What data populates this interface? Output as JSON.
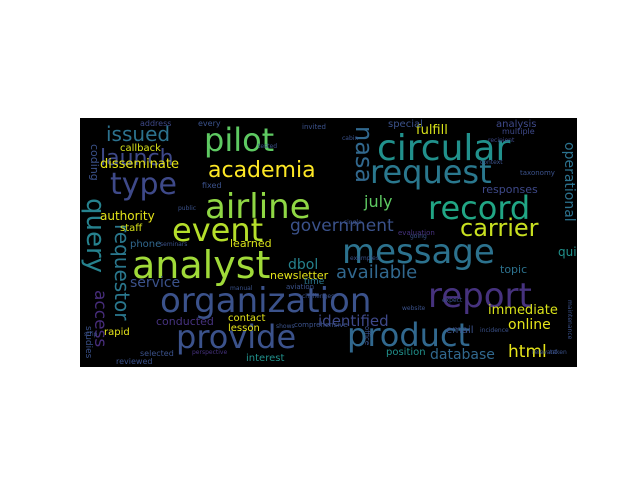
{
  "figure": {
    "words": [
      {
        "text": "organization",
        "color": "#3b528b"
      },
      {
        "text": "analyst",
        "color": "#a0da39"
      },
      {
        "text": "airline",
        "color": "#8fd744"
      },
      {
        "text": "message",
        "color": "#2c728e"
      },
      {
        "text": "provide",
        "color": "#3b528b"
      },
      {
        "text": "product",
        "color": "#31688e"
      },
      {
        "text": "report",
        "color": "#46327e"
      },
      {
        "text": "circular",
        "color": "#21918c"
      },
      {
        "text": "request",
        "color": "#2a788e"
      },
      {
        "text": "record",
        "color": "#21a685"
      },
      {
        "text": "event",
        "color": "#b5de2b"
      },
      {
        "text": "pilot",
        "color": "#5ec962"
      },
      {
        "text": "type",
        "color": "#3e4989"
      },
      {
        "text": "academia",
        "color": "#fde725"
      },
      {
        "text": "carrier",
        "color": "#c8e020"
      },
      {
        "text": "launch",
        "color": "#3e4989"
      },
      {
        "text": "issued",
        "color": "#2c728e"
      },
      {
        "text": "nasa",
        "color": "#31688e"
      },
      {
        "text": "query",
        "color": "#26828e"
      },
      {
        "text": "requestor",
        "color": "#2a788e"
      },
      {
        "text": "government",
        "color": "#3b528b"
      },
      {
        "text": "available",
        "color": "#31688e"
      },
      {
        "text": "identified",
        "color": "#3e4989"
      },
      {
        "text": "service",
        "color": "#3b528b"
      },
      {
        "text": "access",
        "color": "#472d7b"
      },
      {
        "text": "html",
        "color": "#e5e419"
      },
      {
        "text": "database",
        "color": "#31688e"
      },
      {
        "text": "online",
        "color": "#e5e419"
      },
      {
        "text": "immediate",
        "color": "#d8e219"
      },
      {
        "text": "july",
        "color": "#5ec962"
      },
      {
        "text": "fulfill",
        "color": "#d8e219"
      },
      {
        "text": "disseminate",
        "color": "#e5e419"
      },
      {
        "text": "authority",
        "color": "#e5e419"
      },
      {
        "text": "dbol",
        "color": "#26828e"
      },
      {
        "text": "newsletter",
        "color": "#e5e419"
      },
      {
        "text": "learned",
        "color": "#d8e219"
      },
      {
        "text": "quick",
        "color": "#21918c"
      },
      {
        "text": "topic",
        "color": "#2c728e"
      },
      {
        "text": "callback",
        "color": "#d8e219"
      },
      {
        "text": "rapid",
        "color": "#e5e419"
      },
      {
        "text": "position",
        "color": "#21918c"
      },
      {
        "text": "interest",
        "color": "#21918c"
      },
      {
        "text": "lesson",
        "color": "#e5e419"
      },
      {
        "text": "contact",
        "color": "#e5e419"
      },
      {
        "text": "conducted",
        "color": "#46327e"
      },
      {
        "text": "staff",
        "color": "#d8e219"
      },
      {
        "text": "phone",
        "color": "#31688e"
      },
      {
        "text": "email",
        "color": "#3b528b"
      },
      {
        "text": "responses",
        "color": "#3e4989"
      },
      {
        "text": "special",
        "color": "#3b528b"
      },
      {
        "text": "operational",
        "color": "#2c728e"
      },
      {
        "text": "analysis",
        "color": "#3e4989"
      },
      {
        "text": "coding",
        "color": "#3b528b"
      },
      {
        "text": "time",
        "color": "#2a788e"
      },
      {
        "text": "reviewed",
        "color": "#3b528b"
      },
      {
        "text": "address",
        "color": "#3e4989"
      },
      {
        "text": "every",
        "color": "#3b528b"
      },
      {
        "text": "multiple",
        "color": "#3e4989"
      },
      {
        "text": "selected",
        "color": "#3b528b"
      },
      {
        "text": "fixed",
        "color": "#3b528b"
      },
      {
        "text": "studies",
        "color": "#3b528b"
      },
      {
        "text": "taxonomy",
        "color": "#3b528b"
      },
      {
        "text": "evaluation",
        "color": "#46327e"
      },
      {
        "text": "comprehensive",
        "color": "#3b528b"
      },
      {
        "text": "examples",
        "color": "#3b528b"
      },
      {
        "text": "aviation",
        "color": "#3b528b"
      },
      {
        "text": "manual",
        "color": "#3b528b"
      },
      {
        "text": "challenges",
        "color": "#3b528b"
      },
      {
        "text": "recipient",
        "color": "#3e4989"
      },
      {
        "text": "invited",
        "color": "#3b528b"
      },
      {
        "text": "tested",
        "color": "#3b528b"
      },
      {
        "text": "public",
        "color": "#3b528b"
      },
      {
        "text": "context",
        "color": "#3b528b"
      },
      {
        "text": "website",
        "color": "#3b528b"
      },
      {
        "text": "incidence",
        "color": "#3b528b"
      },
      {
        "text": "perspective",
        "color": "#46327e"
      },
      {
        "text": "maintenance",
        "color": "#3b528b"
      },
      {
        "text": "single",
        "color": "#3b528b"
      },
      {
        "text": "cabin",
        "color": "#3b528b"
      },
      {
        "text": "going",
        "color": "#3b528b"
      },
      {
        "text": "strip",
        "color": "#3b528b"
      },
      {
        "text": "office",
        "color": "#3b528b"
      },
      {
        "text": "taken",
        "color": "#3b528b"
      },
      {
        "text": "expect",
        "color": "#3b528b"
      },
      {
        "text": "relevant",
        "color": "#3b528b"
      },
      {
        "text": "seminars",
        "color": "#3b528b"
      },
      {
        "text": "shows",
        "color": "#3b528b"
      }
    ]
  }
}
